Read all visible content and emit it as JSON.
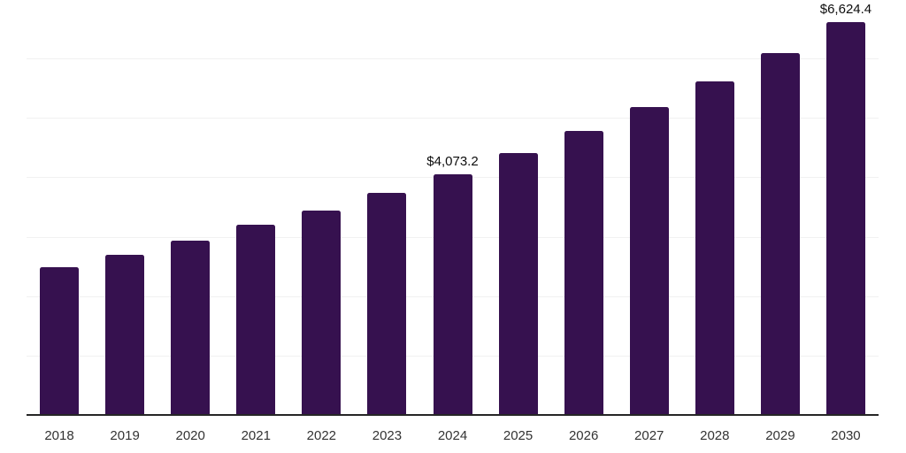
{
  "chart_data": {
    "type": "bar",
    "title": "",
    "categories": [
      "2018",
      "2019",
      "2020",
      "2021",
      "2022",
      "2023",
      "2024",
      "2025",
      "2026",
      "2027",
      "2028",
      "2029",
      "2030"
    ],
    "values": [
      2505,
      2715,
      2950,
      3215,
      3460,
      3760,
      4073.2,
      4420,
      4795,
      5205,
      5635,
      6110,
      6624.4
    ],
    "data_labels": {
      "2024": "$4,073.2",
      "2030": "$6,624.4"
    },
    "xlabel": "",
    "ylabel": "",
    "ylim": [
      0,
      7000
    ],
    "gridline_step": 1000,
    "grid": "horizontal",
    "legend_position": "none",
    "y_axis_ticks_visible": false,
    "colors": {
      "bar": "#36114F",
      "axis_line": "#262626",
      "gridline": "#f1f1f1",
      "tick_label": "#333333",
      "data_label": "#0d0d0d",
      "background": "#ffffff"
    }
  }
}
